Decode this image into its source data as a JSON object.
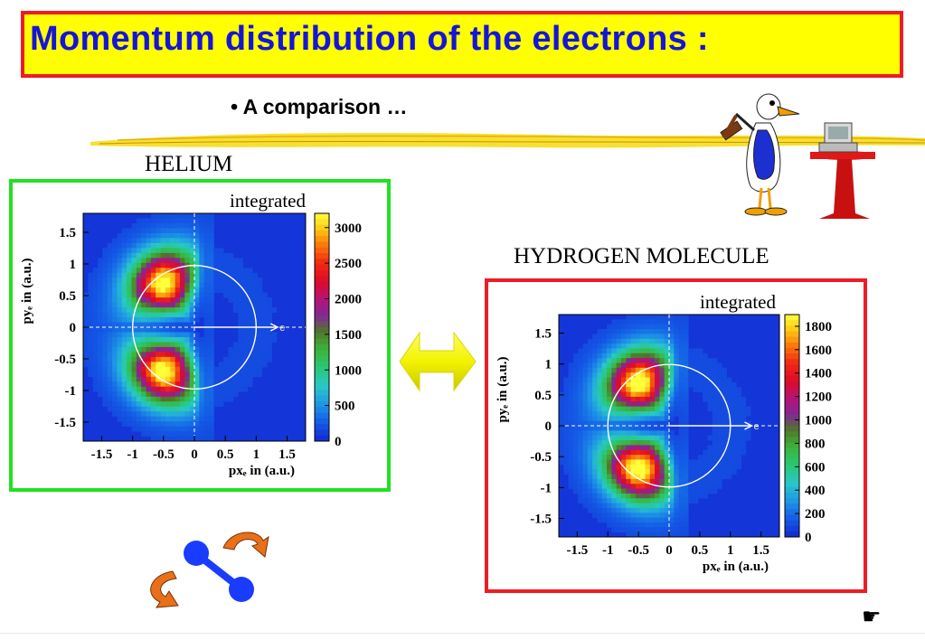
{
  "slide": {
    "title": "Momentum distribution of the electrons :",
    "bullet": "• A comparison …",
    "helium_label": "HELIUM",
    "hydrogen_label": "HYDROGEN MOLECULE"
  },
  "colors": {
    "title_text": "#1515d8",
    "title_bg": "#ffff00",
    "title_border": "#ee1c24",
    "helium_border": "#22e022",
    "hydrogen_border": "#ee1c24",
    "arrow": "#f2f200",
    "molecule_atoms": "#1a3cff",
    "rotation_arrows": "#e8701a"
  },
  "icons": {
    "double_arrow": "double-arrow-icon",
    "molecule": "molecule-icon",
    "duck": "duck-with-hammer-icon",
    "pointer": "pointing-hand-icon"
  },
  "chart_data": [
    {
      "type": "heatmap",
      "title": "integrated",
      "xlabel": "px_e in (a.u.)",
      "ylabel": "py_e in (a.u.)",
      "xlim": [
        -1.8,
        1.8
      ],
      "ylim": [
        -1.8,
        1.8
      ],
      "x_ticks": [
        "-1.5",
        "-1",
        "-0.5",
        "0",
        "0.5",
        "1",
        "1.5"
      ],
      "y_ticks": [
        "1.5",
        "1",
        "0.5",
        "0",
        "-0.5",
        "-1",
        "-1.5"
      ],
      "colorbar_range": [
        0,
        3200
      ],
      "colorbar_ticks": [
        "3000",
        "2500",
        "2000",
        "1500",
        "1000",
        "500",
        "0"
      ],
      "annotation": "e"
    },
    {
      "type": "heatmap",
      "title": "integrated",
      "xlabel": "px_e in (a.u.)",
      "ylabel": "py_e in (a.u.)",
      "xlim": [
        -1.8,
        1.8
      ],
      "ylim": [
        -1.8,
        1.8
      ],
      "x_ticks": [
        "-1.5",
        "-1",
        "-0.5",
        "0",
        "0.5",
        "1",
        "1.5"
      ],
      "y_ticks": [
        "1.5",
        "1",
        "0.5",
        "0",
        "-0.5",
        "-1",
        "-1.5"
      ],
      "colorbar_range": [
        0,
        1900
      ],
      "colorbar_ticks": [
        "1800",
        "1600",
        "1400",
        "1200",
        "1000",
        "800",
        "600",
        "400",
        "200",
        "0"
      ],
      "annotation": "e"
    }
  ]
}
